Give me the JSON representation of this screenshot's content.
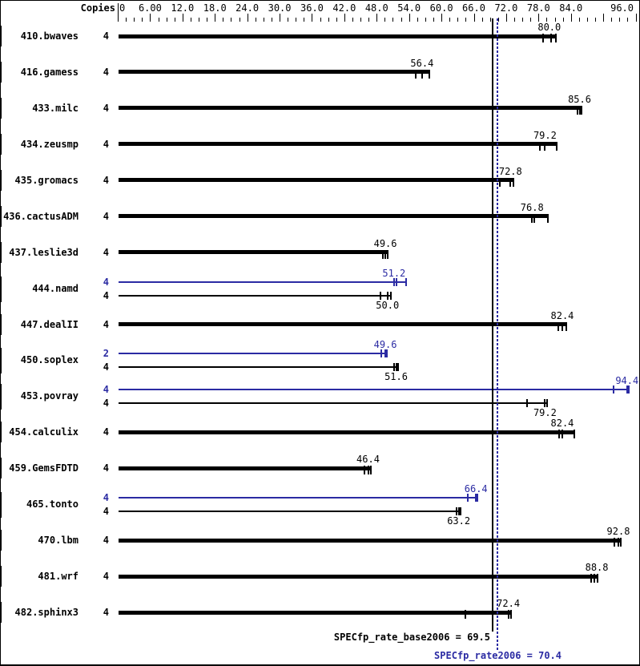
{
  "header": {
    "copies_label": "Copies"
  },
  "colors": {
    "base": "#000000",
    "peak": "#2b2ba3",
    "background": "#ffffff"
  },
  "chart_data": {
    "type": "bar",
    "orientation": "horizontal",
    "xlabel": "",
    "ylabel": "Copies",
    "xlim": [
      0,
      96
    ],
    "x_minor_step": 1.5,
    "x_major_step": 6,
    "grid": false,
    "x_tick_labels": [
      {
        "v": 0,
        "t": "0",
        "align": "left"
      },
      {
        "v": 6,
        "t": "6.00",
        "align": "center"
      },
      {
        "v": 12,
        "t": "12.0",
        "align": "center"
      },
      {
        "v": 18,
        "t": "18.0",
        "align": "center"
      },
      {
        "v": 24,
        "t": "24.0",
        "align": "center"
      },
      {
        "v": 30,
        "t": "30.0",
        "align": "center"
      },
      {
        "v": 36,
        "t": "36.0",
        "align": "center"
      },
      {
        "v": 42,
        "t": "42.0",
        "align": "center"
      },
      {
        "v": 48,
        "t": "48.0",
        "align": "center"
      },
      {
        "v": 54,
        "t": "54.0",
        "align": "center"
      },
      {
        "v": 60,
        "t": "60.0",
        "align": "center"
      },
      {
        "v": 66,
        "t": "66.0",
        "align": "center"
      },
      {
        "v": 72,
        "t": "72.0",
        "align": "center"
      },
      {
        "v": 78,
        "t": "78.0",
        "align": "center"
      },
      {
        "v": 84,
        "t": "84.0",
        "align": "center"
      },
      {
        "v": 96,
        "t": "96.0",
        "align": "right"
      }
    ],
    "benchmarks": [
      {
        "name": "410.bwaves",
        "bars": [
          {
            "series": "base",
            "copies": "4",
            "value": 80.0,
            "label": "80.0",
            "marks": [
              78.8,
              80.4,
              81.2
            ]
          }
        ]
      },
      {
        "name": "416.gamess",
        "bars": [
          {
            "series": "base",
            "copies": "4",
            "value": 56.4,
            "label": "56.4",
            "marks": [
              55.3,
              56.4,
              57.7
            ]
          }
        ]
      },
      {
        "name": "433.milc",
        "bars": [
          {
            "series": "base",
            "copies": "4",
            "value": 85.6,
            "label": "85.6",
            "marks": [
              85.2,
              85.6,
              86.0
            ]
          }
        ]
      },
      {
        "name": "434.zeusmp",
        "bars": [
          {
            "series": "base",
            "copies": "4",
            "value": 79.2,
            "label": "79.2",
            "marks": [
              78.2,
              79.2,
              81.4
            ]
          }
        ]
      },
      {
        "name": "435.gromacs",
        "bars": [
          {
            "series": "base",
            "copies": "4",
            "value": 72.8,
            "label": "72.8",
            "marks": [
              70.8,
              72.8,
              73.4
            ]
          }
        ]
      },
      {
        "name": "436.cactusADM",
        "bars": [
          {
            "series": "base",
            "copies": "4",
            "value": 76.8,
            "label": "76.8",
            "marks": [
              76.8,
              77.2,
              79.8
            ]
          }
        ]
      },
      {
        "name": "437.leslie3d",
        "bars": [
          {
            "series": "base",
            "copies": "4",
            "value": 49.6,
            "label": "49.6",
            "marks": [
              49.1,
              49.6,
              50.0
            ]
          }
        ]
      },
      {
        "name": "444.namd",
        "bars": [
          {
            "series": "peak",
            "copies": "4",
            "value": 51.2,
            "label": "51.2",
            "marks": [
              51.2,
              51.6,
              53.4
            ]
          },
          {
            "series": "base",
            "copies": "4",
            "value": 50.0,
            "label": "50.0",
            "marks": [
              48.7,
              50.0,
              50.6
            ]
          }
        ]
      },
      {
        "name": "447.dealII",
        "bars": [
          {
            "series": "base",
            "copies": "4",
            "value": 82.4,
            "label": "82.4",
            "marks": [
              81.6,
              82.4,
              83.2
            ]
          }
        ]
      },
      {
        "name": "450.soplex",
        "bars": [
          {
            "series": "peak",
            "copies": "2",
            "value": 49.6,
            "label": "49.6",
            "marks": [
              48.8,
              49.6,
              49.9
            ]
          },
          {
            "series": "base",
            "copies": "4",
            "value": 51.6,
            "label": "51.6",
            "marks": [
              51.2,
              51.6,
              52.0
            ]
          }
        ]
      },
      {
        "name": "453.povray",
        "bars": [
          {
            "series": "peak",
            "copies": "4",
            "value": 94.4,
            "label": "94.4",
            "marks": [
              91.9,
              94.4,
              94.8
            ]
          },
          {
            "series": "base",
            "copies": "4",
            "value": 79.2,
            "label": "79.2",
            "marks": [
              75.8,
              79.2,
              79.6
            ]
          }
        ]
      },
      {
        "name": "454.calculix",
        "bars": [
          {
            "series": "base",
            "copies": "4",
            "value": 82.4,
            "label": "82.4",
            "marks": [
              81.8,
              82.4,
              84.7
            ]
          }
        ]
      },
      {
        "name": "459.GemsFDTD",
        "bars": [
          {
            "series": "base",
            "copies": "4",
            "value": 46.4,
            "label": "46.4",
            "marks": [
              45.7,
              46.4,
              46.9
            ]
          }
        ]
      },
      {
        "name": "465.tonto",
        "bars": [
          {
            "series": "peak",
            "copies": "4",
            "value": 66.4,
            "label": "66.4",
            "marks": [
              64.9,
              66.4,
              66.6
            ]
          },
          {
            "series": "base",
            "copies": "4",
            "value": 63.2,
            "label": "63.2",
            "marks": [
              62.8,
              63.2,
              63.5
            ]
          }
        ]
      },
      {
        "name": "470.lbm",
        "bars": [
          {
            "series": "base",
            "copies": "4",
            "value": 92.8,
            "label": "92.8",
            "marks": [
              92.0,
              92.8,
              93.3
            ]
          }
        ]
      },
      {
        "name": "481.wrf",
        "bars": [
          {
            "series": "base",
            "copies": "4",
            "value": 88.8,
            "label": "88.8",
            "marks": [
              87.8,
              88.4,
              88.9
            ]
          }
        ]
      },
      {
        "name": "482.sphinx3",
        "bars": [
          {
            "series": "base",
            "copies": "4",
            "value": 72.4,
            "label": "72.4",
            "marks": [
              64.5,
              72.4,
              72.9
            ]
          }
        ]
      }
    ],
    "summary": {
      "base": {
        "label": "SPECfp_rate_base2006 = 69.5",
        "value": 69.5
      },
      "peak": {
        "label": "SPECfp_rate2006 = 70.4",
        "value": 70.4
      }
    }
  }
}
